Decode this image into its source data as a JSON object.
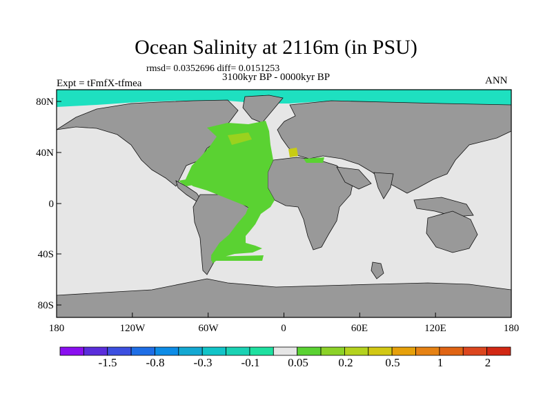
{
  "title": "Ocean Salinity at 2116m (in PSU)",
  "stats": "rmsd= 0.0352696 diff= 0.0151253",
  "period": "3100kyr BP - 0000kyr BP",
  "experiment": "Expt = tFmfX-tfmea",
  "season": "ANN",
  "lat_labels": [
    "80N",
    "40N",
    "0",
    "40S",
    "80S"
  ],
  "lon_labels": [
    "180",
    "120W",
    "60W",
    "0",
    "60E",
    "120E",
    "180"
  ],
  "colorbar": {
    "colors": [
      "#8a0ff0",
      "#5a2ddb",
      "#3c4fe0",
      "#1e6ee6",
      "#0d8ce6",
      "#14a8d2",
      "#12c4c8",
      "#1ad2b4",
      "#1ee0a0",
      "#e6e6e6",
      "#5ad232",
      "#8cd228",
      "#b4d21e",
      "#d2c814",
      "#e6a00a",
      "#e68214",
      "#e06414",
      "#dc461e",
      "#d22814"
    ],
    "labels": [
      "-1.5",
      "-0.8",
      "-0.3",
      "-0.1",
      "0.05",
      "0.2",
      "0.5",
      "1",
      "2"
    ]
  },
  "map_colors": {
    "ocean": "#e6e6e6",
    "land": "#999999",
    "negative": "#1ee0c0",
    "positive": "#5ad232",
    "positive_high": "#9ad21e",
    "positive_max": "#c8cc14"
  }
}
